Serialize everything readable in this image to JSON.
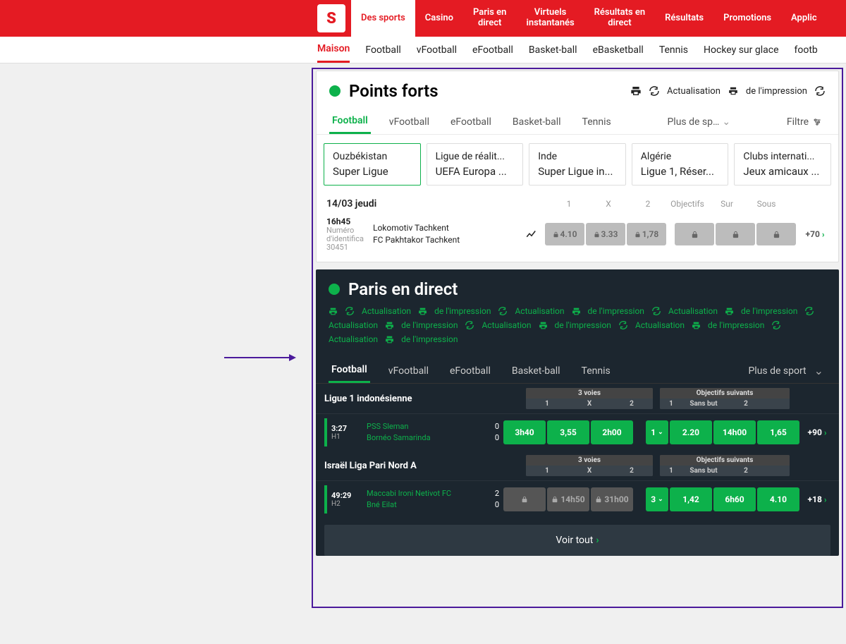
{
  "brand": {
    "logo_letter": "S"
  },
  "topnav": [
    {
      "label": "Des sports",
      "active": true
    },
    {
      "label": "Casino"
    },
    {
      "label": "Paris en\ndirect"
    },
    {
      "label": "Virtuels\ninstantanés"
    },
    {
      "label": "Résultats en\ndirect"
    },
    {
      "label": "Résultats"
    },
    {
      "label": "Promotions"
    },
    {
      "label": "Applic"
    }
  ],
  "subnav": [
    {
      "label": "Maison",
      "active": true
    },
    {
      "label": "Football"
    },
    {
      "label": "vFootball"
    },
    {
      "label": "eFootball"
    },
    {
      "label": "Basket-ball"
    },
    {
      "label": "eBasketball"
    },
    {
      "label": "Tennis"
    },
    {
      "label": "Hockey sur glace"
    },
    {
      "label": "footb"
    }
  ],
  "highlights": {
    "title": "Points forts",
    "refresh_label": "Actualisation",
    "print_label": "de l'impression",
    "sport_tabs": [
      {
        "label": "Football",
        "active": true
      },
      {
        "label": "vFootball"
      },
      {
        "label": "eFootball"
      },
      {
        "label": "Basket-ball"
      },
      {
        "label": "Tennis"
      },
      {
        "label": "Plus de sp…",
        "more": true
      },
      {
        "label": "Filtre",
        "filter": true
      }
    ],
    "leagues": [
      {
        "country": "Ouzbékistan",
        "name": "Super Ligue",
        "active": true
      },
      {
        "country": "Ligue de réalit...",
        "name": "UEFA Europa ..."
      },
      {
        "country": "Inde",
        "name": "Super Ligue in..."
      },
      {
        "country": "Algérie",
        "name": "Ligue 1, Réser..."
      },
      {
        "country": "Clubs internati...",
        "name": "Jeux amicaux ..."
      }
    ],
    "date": "14/03 jeudi",
    "odds_headers": [
      "1",
      "X",
      "2",
      "Objectifs",
      "Sur",
      "Sous"
    ],
    "match": {
      "time": "16h45",
      "id_label": "Numéro d'identifica 30451",
      "home": "Lokomotiv Tachkent",
      "away": "FC Pakhtakor Tachkent",
      "odds_1x2": [
        "4.10",
        "3.33",
        "1,78"
      ],
      "more": "+70"
    }
  },
  "live": {
    "title": "Paris en direct",
    "refresh_label": "Actualisation",
    "print_label": "de l'impression",
    "sport_tabs": [
      {
        "label": "Football",
        "active": true
      },
      {
        "label": "vFootball"
      },
      {
        "label": "eFootball"
      },
      {
        "label": "Basket-ball"
      },
      {
        "label": "Tennis"
      },
      {
        "label": "Plus de sport",
        "more": true
      }
    ],
    "header_group1": {
      "title": "3 voies",
      "cells": [
        "1",
        "X",
        "2"
      ]
    },
    "header_group2": {
      "title": "Objectifs suivants",
      "cells": [
        "1",
        "Sans but",
        "2"
      ]
    },
    "leagues": [
      {
        "name": "Ligue 1 indonésienne",
        "match": {
          "clock": "3:27",
          "half": "H1",
          "home": "PSS Sleman",
          "away": "Bornéo Samarinda",
          "score_home": "0",
          "score_away": "0",
          "odds1": [
            "3h40",
            "3,55",
            "2h00"
          ],
          "goal_n": "1",
          "odds2": [
            "2.20",
            "14h00",
            "1,65"
          ],
          "more": "+90"
        }
      },
      {
        "name": "Israël Liga Pari Nord A",
        "match": {
          "clock": "49:29",
          "half": "H2",
          "home": "Maccabi Ironi Netivot FC",
          "away": "Bné Eilat",
          "score_home": "2",
          "score_away": "0",
          "odds1_locked": true,
          "odds1": [
            "",
            "14h50",
            "31h00"
          ],
          "goal_n": "3",
          "odds2": [
            "1,42",
            "6h60",
            "4.10"
          ],
          "more": "+18"
        }
      }
    ],
    "view_all": "Voir tout"
  }
}
